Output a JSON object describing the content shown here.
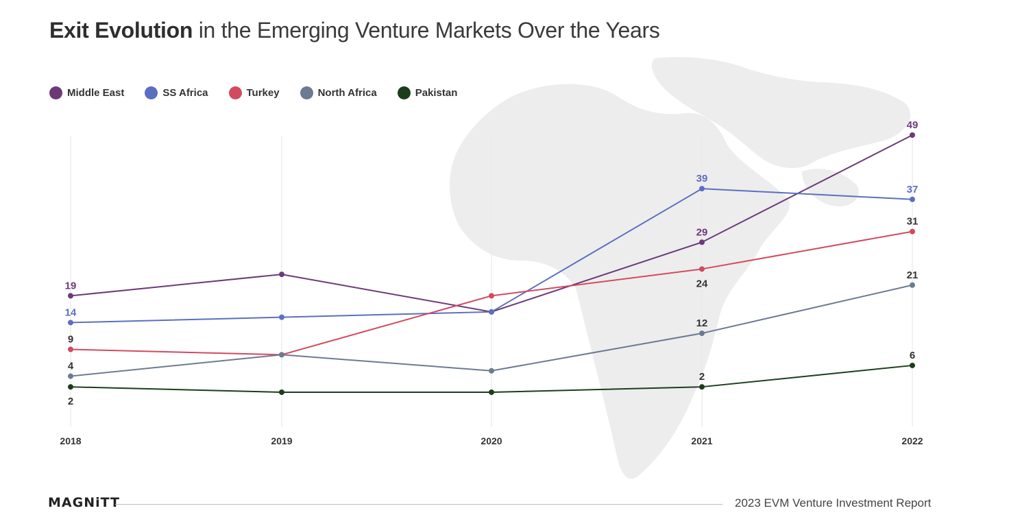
{
  "header": {
    "title_bold": "Exit Evolution",
    "title_rest": " in the Emerging Venture Markets Over the Years"
  },
  "footer": {
    "logo": "MAGNiTT",
    "report": "2023 EVM Venture Investment Report"
  },
  "colors": {
    "background_map": "#ededed",
    "gridline": "#e6e6e6"
  },
  "chart_data": {
    "type": "line",
    "categories": [
      "2018",
      "2019",
      "2020",
      "2021",
      "2022"
    ],
    "ylim": [
      0,
      52
    ],
    "grid": "vertical",
    "legend_position": "top-left",
    "series": [
      {
        "name": "Middle East",
        "color": "#6b3a78",
        "values": [
          19,
          23,
          16,
          29,
          49
        ],
        "labels": [
          "19",
          "",
          "",
          "29",
          "49"
        ],
        "label_pos": [
          "above",
          "above",
          "above",
          "above",
          "above"
        ]
      },
      {
        "name": "SS Africa",
        "color": "#5b6fc0",
        "values": [
          14,
          15,
          16,
          39,
          37
        ],
        "labels": [
          "14",
          "",
          "",
          "39",
          "37"
        ],
        "label_pos": [
          "above",
          "above",
          "above",
          "above",
          "above"
        ]
      },
      {
        "name": "Turkey",
        "color": "#d24a5e",
        "values": [
          9,
          8,
          19,
          24,
          31
        ],
        "labels": [
          "9",
          "",
          "",
          "24",
          "31"
        ],
        "label_pos": [
          "above",
          "above",
          "above",
          "below",
          "above"
        ]
      },
      {
        "name": "North Africa",
        "color": "#6c7a92",
        "values": [
          4,
          8,
          5,
          12,
          21
        ],
        "labels": [
          "4",
          "",
          "",
          "12",
          "21"
        ],
        "label_pos": [
          "above",
          "above",
          "above",
          "above",
          "above"
        ]
      },
      {
        "name": "Pakistan",
        "color": "#1c3d1c",
        "values": [
          2,
          1,
          1,
          2,
          6
        ],
        "labels": [
          "2",
          "",
          "",
          "2",
          "6"
        ],
        "label_pos": [
          "below",
          "above",
          "above",
          "above",
          "above"
        ]
      }
    ]
  }
}
